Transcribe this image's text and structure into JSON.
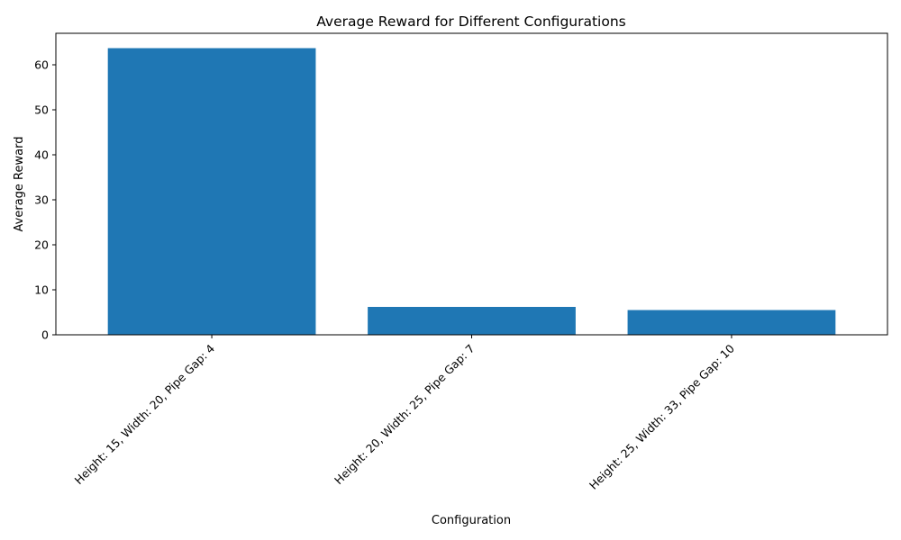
{
  "chart_data": {
    "type": "bar",
    "title": "Average Reward for Different Configurations",
    "xlabel": "Configuration",
    "ylabel": "Average Reward",
    "categories": [
      "Height: 15, Width: 20, Pipe Gap: 4",
      "Height: 20, Width: 25, Pipe Gap: 7",
      "Height: 25, Width: 33, Pipe Gap: 10"
    ],
    "values": [
      63.7,
      6.2,
      5.5
    ],
    "ylim": [
      0,
      67
    ],
    "yticks": [
      0,
      10,
      20,
      30,
      40,
      50,
      60
    ],
    "grid": false,
    "legend": "none",
    "bar_color": "#1f77b4"
  }
}
